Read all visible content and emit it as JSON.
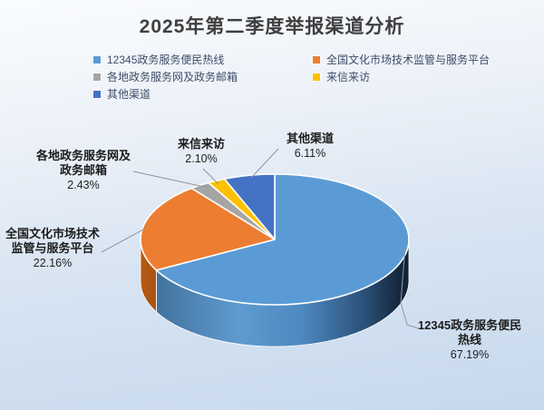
{
  "chart_data": {
    "type": "pie",
    "style": "3d",
    "title": "2025年第二季度举报渠道分析",
    "labels": [
      "12345政务服务便民热线",
      "全国文化市场技术监管与服务平台",
      "各地政务服务网及政务邮箱",
      "来信来访",
      "其他渠道"
    ],
    "values": [
      67.19,
      22.16,
      2.43,
      2.1,
      6.11
    ],
    "value_labels": [
      "67.19%",
      "22.16%",
      "2.43%",
      "2.10%",
      "6.11%"
    ],
    "colors": [
      "#5B9BD5",
      "#ED7D31",
      "#A5A5A5",
      "#FFC000",
      "#4472C4"
    ],
    "unit": "%",
    "start_angle_deg": 0,
    "direction": "clockwise",
    "legend_position": "top",
    "grid": false
  }
}
